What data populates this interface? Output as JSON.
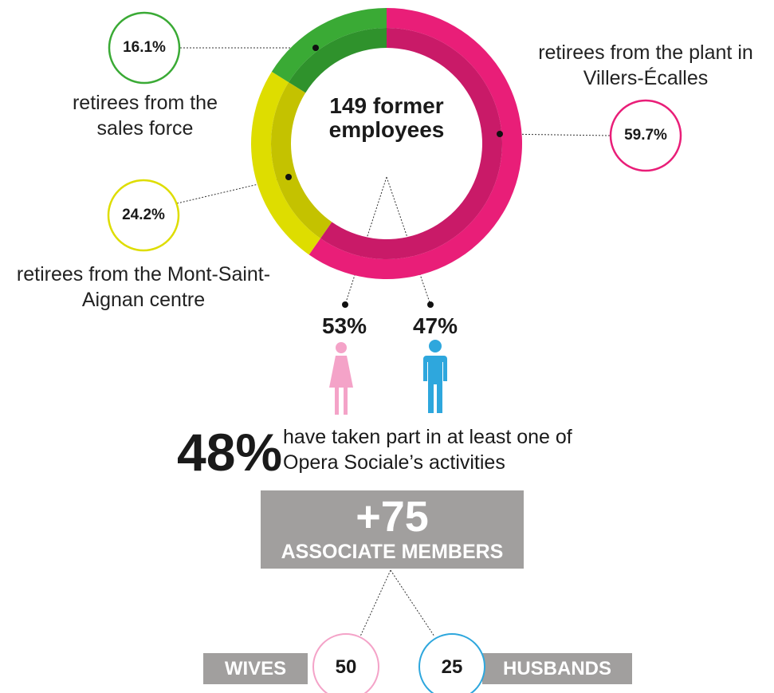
{
  "chart_data": {
    "type": "donut",
    "title": "149 former employees",
    "categories": [
      "retirees from the plant in Villers-Écalles",
      "retirees from the Mont-Saint-Aignan centre",
      "retirees from the sales force"
    ],
    "values": [
      59.7,
      24.2,
      16.1
    ],
    "value_labels": [
      "59.7%",
      "24.2%",
      "16.1%"
    ],
    "colors": [
      "#e91e78",
      "#dedd00",
      "#3aaa35"
    ],
    "inner_colors": [
      "#c91a68",
      "#c4c200",
      "#2f922c"
    ]
  },
  "gender": {
    "women": "53%",
    "men": "47%"
  },
  "activities": {
    "value": "48%",
    "text": "have taken part in at least one of Opera Sociale’s activities"
  },
  "associates": {
    "count": "+75",
    "label": "ASSOCIATE MEMBERS",
    "wives_label": "WIVES",
    "wives": "50",
    "husbands": "25",
    "husbands_label": "HUSBANDS"
  }
}
